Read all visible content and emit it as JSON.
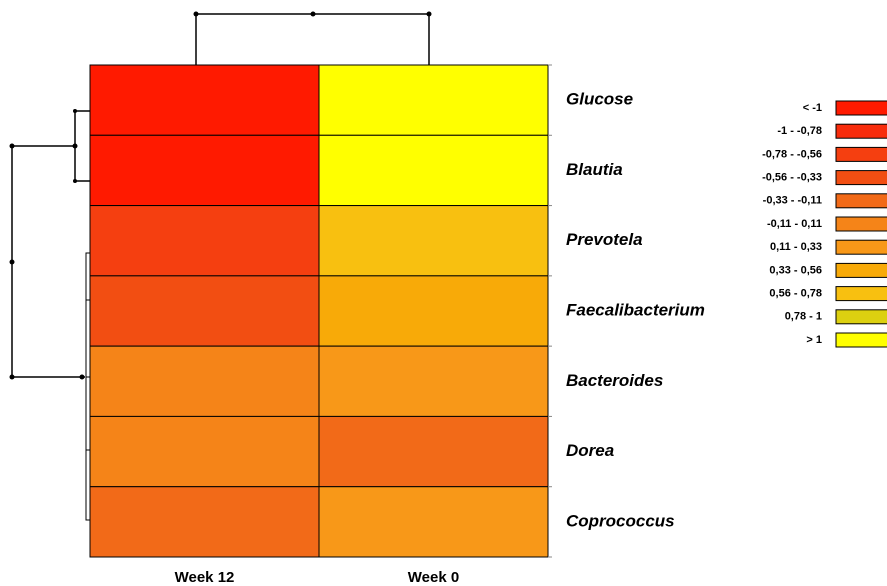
{
  "chart_data": {
    "type": "heatmap",
    "rows": [
      "Glucose",
      "Blautia",
      "Prevotela",
      "Faecalibacterium",
      "Bacteroides",
      "Dorea",
      "Coprococcus"
    ],
    "columns": [
      "Week 12",
      "Week 0"
    ],
    "values": [
      [
        -1.2,
        1.2
      ],
      [
        -1.1,
        1.1
      ],
      [
        -0.65,
        0.65
      ],
      [
        -0.5,
        0.45
      ],
      [
        -0.05,
        0.2
      ],
      [
        0,
        -0.2
      ],
      [
        -0.3,
        0.15
      ]
    ],
    "breaks": [
      -1,
      -0.78,
      -0.56,
      -0.33,
      -0.11,
      0.11,
      0.33,
      0.56,
      0.78,
      1
    ],
    "legend": {
      "labels": [
        "< -1",
        "-1 - -0,78",
        "-0,78 - -0,56",
        "-0,56 - -0,33",
        "-0,33 - -0,11",
        "-0,11 - 0,11",
        "0,11 - 0,33",
        "0,33 - 0,56",
        "0,56 - 0,78",
        "0,78 - 1",
        "> 1"
      ],
      "colors": [
        "#ff1a00",
        "#f82c0c",
        "#f53f10",
        "#f24e12",
        "#f26a18",
        "#f58418",
        "#f89818",
        "#f8aa08",
        "#f8c010",
        "#dcd010",
        "#ffff00"
      ]
    }
  }
}
